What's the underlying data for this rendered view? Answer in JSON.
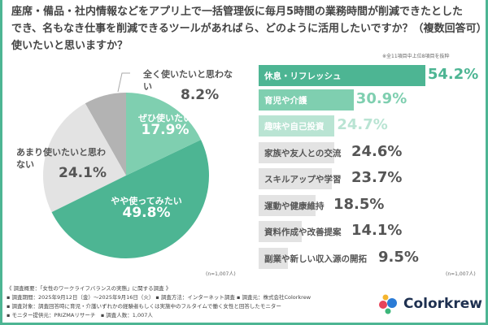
{
  "left": {
    "question": "座席・備品・社内情報などをアプリ上で一括管理でき、名もなき仕事を削減できるツールがあれば使いたいと思いますか？",
    "n": "(n=1,007人)"
  },
  "right": {
    "question": "仮に毎月5時間の業務時間が削減できたとしたら、どのように活用したいですか？（複数回答可）",
    "note": "※全11項目中上位8項目を抜粋",
    "n": "(n=1,007人)"
  },
  "chart_data": [
    {
      "type": "pie",
      "categories": [
        "ぜひ使いたい",
        "やや使ってみたい",
        "あまり使いたいと思わない",
        "全く使いたいと思わない"
      ],
      "values": [
        17.9,
        49.8,
        24.1,
        8.2
      ],
      "labels": [
        "17.9%",
        "49.8%",
        "24.1%",
        "8.2%"
      ],
      "colors": [
        "#7fcfb0",
        "#4db593",
        "#e3e3e3",
        "#b3b3b3"
      ]
    },
    {
      "type": "bar",
      "orientation": "horizontal",
      "categories": [
        "休息・リフレッシュ",
        "育児や介護",
        "趣味や自己投資",
        "家族や友人との交流",
        "スキルアップや学習",
        "運動や健康維持",
        "資料作成や改善提案",
        "副業や新しい収入源の開拓"
      ],
      "values": [
        54.2,
        30.9,
        24.7,
        24.6,
        23.7,
        18.5,
        14.1,
        9.5
      ],
      "labels": [
        "54.2%",
        "30.9%",
        "24.7%",
        "24.6%",
        "23.7%",
        "18.5%",
        "14.1%",
        "9.5%"
      ],
      "colors": [
        "#4db593",
        "#7fcfb0",
        "#b9e4d3",
        "#e3e3e3",
        "#e3e3e3",
        "#e3e3e3",
        "#e3e3e3",
        "#e3e3e3"
      ]
    }
  ],
  "footer": {
    "lines": [
      "《 調査概要：「女性のワークライフバランスの実態」に関する調査 》",
      "▪ 調査期間：2025年9月12日（金）～2025年9月16日（火） ▪ 調査方法：インターネット調査 ▪ 調査元：株式会社Colorkrew",
      "▪ 調査対象：調査回答時に育児・介護いずれかの経験者もしくは実施中のフルタイムで働く女性と回答したモニター",
      "▪ モニター提供元：PRIZMAリサーチ　▪ 調査人数：1,007人"
    ]
  },
  "logo": {
    "text": "Colorkrew"
  }
}
